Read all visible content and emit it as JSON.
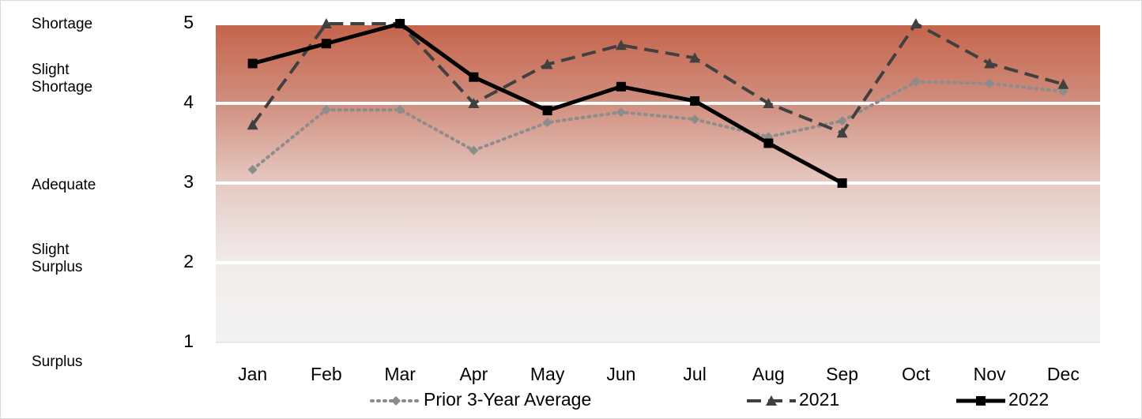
{
  "chart_data": {
    "type": "line",
    "categories": [
      "Jan",
      "Feb",
      "Mar",
      "Apr",
      "May",
      "Jun",
      "Jul",
      "Aug",
      "Sep",
      "Oct",
      "Nov",
      "Dec"
    ],
    "series": [
      {
        "name": "Prior 3-Year Average",
        "color": "#8c8c8c",
        "marker": "diamond",
        "line": "dotted",
        "values": [
          3.17,
          3.92,
          3.92,
          3.41,
          3.76,
          3.89,
          3.8,
          3.58,
          3.78,
          4.27,
          4.25,
          4.15
        ]
      },
      {
        "name": "2021",
        "color": "#404040",
        "marker": "triangle",
        "line": "dashed",
        "values": [
          3.73,
          5,
          5,
          4,
          4.49,
          4.73,
          4.57,
          4,
          3.63,
          5,
          4.5,
          4.24
        ]
      },
      {
        "name": "2022",
        "color": "#000000",
        "marker": "square",
        "line": "solid",
        "values": [
          4.5,
          4.75,
          5,
          4.33,
          3.91,
          4.21,
          4.03,
          3.5,
          3,
          null,
          null,
          null
        ]
      }
    ],
    "ylim": [
      1,
      5
    ],
    "yticks": [
      1,
      2,
      3,
      4,
      5
    ],
    "grid": true,
    "legend": "bottom",
    "level_labels": [
      "Shortage",
      "Slight Shortage",
      "Adequate",
      "Slight Surplus",
      "Surplus"
    ]
  }
}
